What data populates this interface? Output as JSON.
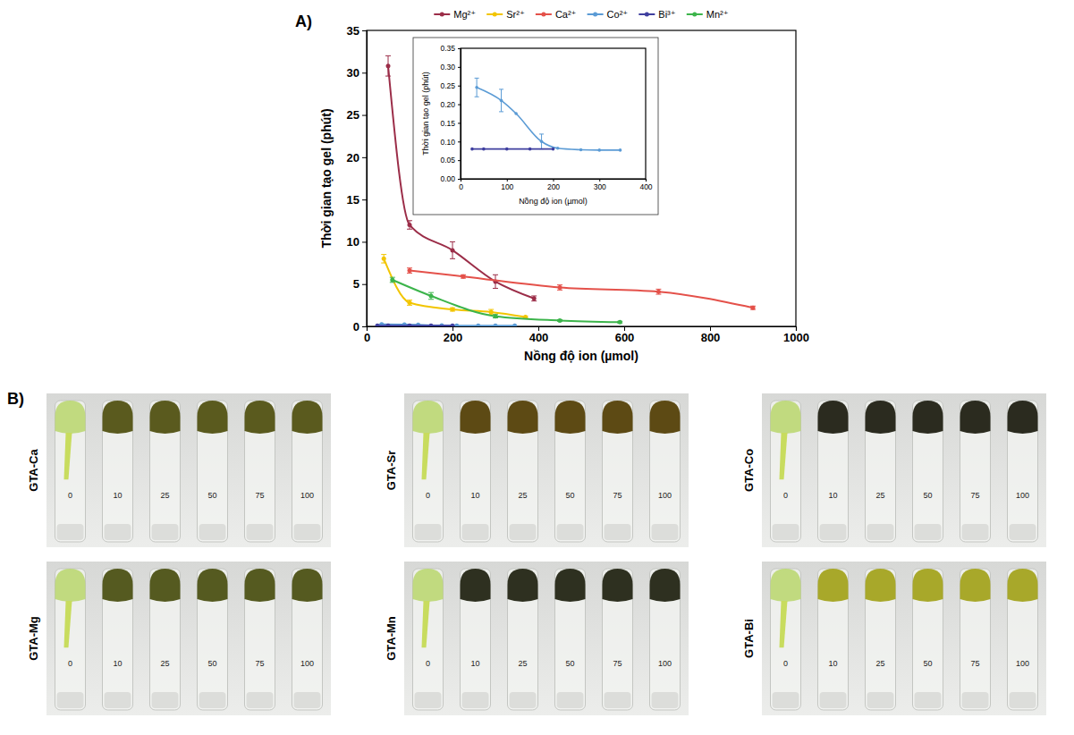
{
  "chart_data": [
    {
      "type": "line",
      "panel_label": "A)",
      "xlabel": "Nồng độ ion (µmol)",
      "ylabel": "Thời gian tạo gel (phút)",
      "xlim": [
        0,
        1000
      ],
      "xticks": [
        0,
        200,
        400,
        600,
        800,
        1000
      ],
      "ylim": [
        0,
        35
      ],
      "yticks": [
        0,
        5,
        10,
        15,
        20,
        25,
        30,
        35
      ],
      "grid": false,
      "legend": "top",
      "marker": "circle",
      "series": [
        {
          "name": "Mg²⁺",
          "color": "#9b2d48",
          "x": [
            50,
            100,
            200,
            300,
            390
          ],
          "values": [
            30.8,
            12,
            9,
            5.3,
            3.3
          ],
          "errors": [
            1.2,
            0.5,
            1,
            0.8,
            0.3
          ]
        },
        {
          "name": "Sr²⁺",
          "color": "#f2c500",
          "x": [
            40,
            100,
            200,
            290,
            370
          ],
          "values": [
            8,
            2.8,
            2,
            1.7,
            1.1
          ],
          "errors": [
            0.5,
            0.3,
            0.2,
            0.3,
            0.1
          ]
        },
        {
          "name": "Ca²⁺",
          "color": "#e4514a",
          "x": [
            100,
            225,
            450,
            680,
            900
          ],
          "values": [
            6.6,
            5.9,
            4.6,
            4.1,
            2.2
          ],
          "errors": [
            0.3,
            0.2,
            0.3,
            0.3,
            0.2
          ]
        },
        {
          "name": "Co²⁺",
          "color": "#5b9bd5",
          "x": [
            35,
            88,
            120,
            175,
            210,
            260,
            300,
            345
          ],
          "values": [
            0.245,
            0.21,
            0.175,
            0.1,
            0.082,
            0.078,
            0.077,
            0.077
          ],
          "errors": [
            0.025,
            0.03,
            null,
            0.02,
            null,
            null,
            null,
            null
          ]
        },
        {
          "name": "Bi³⁺",
          "color": "#3f3f9f",
          "x": [
            25,
            50,
            100,
            150,
            200
          ],
          "values": [
            0.08,
            0.08,
            0.08,
            0.08,
            0.08
          ],
          "errors": [
            null,
            null,
            null,
            null,
            null
          ]
        },
        {
          "name": "Mn²⁺",
          "color": "#3cb44b",
          "x": [
            60,
            150,
            300,
            450,
            590
          ],
          "values": [
            5.5,
            3.6,
            1.2,
            0.7,
            0.5
          ],
          "errors": [
            0.3,
            0.4,
            0.2,
            0.1,
            0.1
          ]
        }
      ]
    },
    {
      "type": "line",
      "xlabel": "Nồng độ ion (µmol)",
      "ylabel": "Thời gian tạo gel (phút)",
      "xlim": [
        0,
        400
      ],
      "xticks": [
        0,
        100,
        200,
        300,
        400
      ],
      "ylim": [
        0,
        0.35
      ],
      "yticks": [
        {
          "value": 0,
          "label": "0.00"
        },
        {
          "value": 0.05,
          "label": "0.05"
        },
        {
          "value": 0.1,
          "label": "0.10"
        },
        {
          "value": 0.15,
          "label": "0.15"
        },
        {
          "value": 0.2,
          "label": "0.20"
        },
        {
          "value": 0.25,
          "label": "0.25"
        },
        {
          "value": 0.3,
          "label": "0.30"
        },
        {
          "value": 0.35,
          "label": "0.35"
        }
      ],
      "grid": false,
      "marker": "circle",
      "series": [
        {
          "name": "Co²⁺",
          "color": "#5b9bd5",
          "x": [
            35,
            88,
            120,
            175,
            210,
            260,
            300,
            345
          ],
          "values": [
            0.245,
            0.21,
            0.175,
            0.1,
            0.082,
            0.078,
            0.077,
            0.077
          ],
          "errors": [
            0.025,
            0.03,
            null,
            0.02,
            null,
            null,
            null,
            null
          ]
        },
        {
          "name": "Bi³⁺",
          "color": "#3f3f9f",
          "x": [
            25,
            50,
            100,
            150,
            200
          ],
          "values": [
            0.08,
            0.08,
            0.08,
            0.08,
            0.08
          ],
          "errors": [
            null,
            null,
            null,
            null,
            null
          ]
        }
      ]
    }
  ],
  "photos": {
    "panel_label": "B)",
    "concentrations": [
      0,
      10,
      25,
      50,
      75,
      100
    ],
    "panels": [
      {
        "label": "GTA-Ca",
        "color": "#5a5a1e"
      },
      {
        "label": "GTA-Sr",
        "color": "#5d4a14"
      },
      {
        "label": "GTA-Co",
        "color": "#2b2b1f"
      },
      {
        "label": "GTA-Mg",
        "color": "#555a20"
      },
      {
        "label": "GTA-Mn",
        "color": "#2e3020"
      },
      {
        "label": "GTA-Bi",
        "color": "#a8a82a"
      }
    ]
  }
}
